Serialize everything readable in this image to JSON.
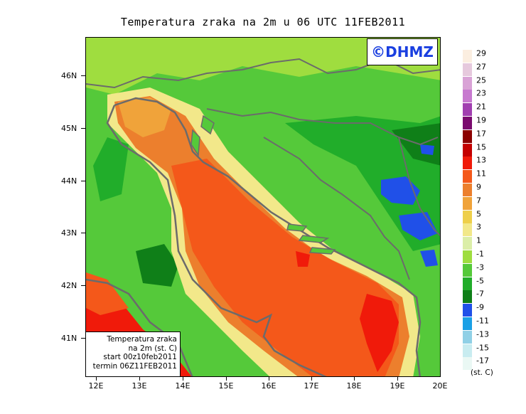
{
  "title": "Temperatura zraka na 2m u 06 UTC 11FEB2011",
  "logo": "©DHMZ",
  "infobox": {
    "line1": "Temperatura zraka",
    "line2": "na 2m (st. C)",
    "line3": "start 00z10feb2011",
    "line4": "termin 06Z11FEB2011"
  },
  "axes": {
    "lat_labels": [
      "46N",
      "45N",
      "44N",
      "43N",
      "42N",
      "41N"
    ],
    "lon_labels": [
      "12E",
      "13E",
      "14E",
      "15E",
      "16E",
      "17E",
      "18E",
      "19E",
      "20E"
    ]
  },
  "legend": {
    "unit": "(st. C)",
    "entries": [
      {
        "label": "29",
        "color": "#fbeee0"
      },
      {
        "label": "27",
        "color": "#e6c9dd"
      },
      {
        "label": "25",
        "color": "#d9a2d6"
      },
      {
        "label": "23",
        "color": "#c779cf"
      },
      {
        "label": "21",
        "color": "#a13fb0"
      },
      {
        "label": "19",
        "color": "#7a0a6e"
      },
      {
        "label": "17",
        "color": "#8c0000"
      },
      {
        "label": "15",
        "color": "#c40000"
      },
      {
        "label": "13",
        "color": "#f01a0a"
      },
      {
        "label": "11",
        "color": "#f4581a"
      },
      {
        "label": "9",
        "color": "#ec7f2d"
      },
      {
        "label": "7",
        "color": "#f0a33a"
      },
      {
        "label": "5",
        "color": "#eecf4a"
      },
      {
        "label": "3",
        "color": "#f2e88a"
      },
      {
        "label": "1",
        "color": "#dbeea8"
      },
      {
        "label": "-1",
        "color": "#9fdd3f"
      },
      {
        "label": "-3",
        "color": "#55c93a"
      },
      {
        "label": "-5",
        "color": "#21ad2a"
      },
      {
        "label": "-7",
        "color": "#0f7f18"
      },
      {
        "label": "-9",
        "color": "#2050e8"
      },
      {
        "label": "-11",
        "color": "#1aa0e6"
      },
      {
        "label": "-13",
        "color": "#90d0e6"
      },
      {
        "label": "-15",
        "color": "#c8ecf0"
      },
      {
        "label": "-17",
        "color": "#eaf8f4"
      }
    ]
  }
}
